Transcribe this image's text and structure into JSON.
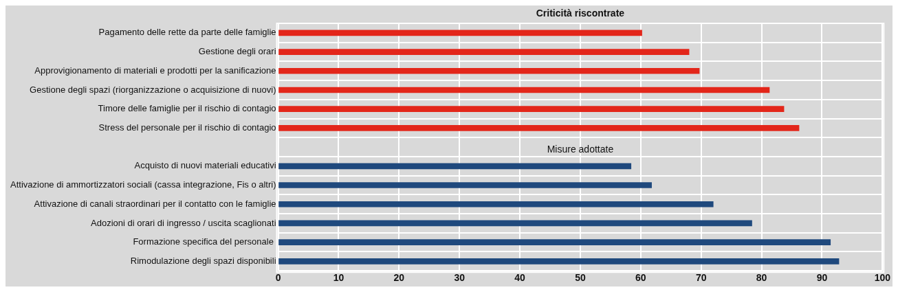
{
  "chart_data": {
    "type": "bar",
    "orientation": "horizontal",
    "title": "Criticità riscontrate",
    "categories": [
      "Pagamento delle rette da parte delle famiglie",
      "Gestione degli orari",
      "Approvigionamento di materiali e prodotti per la sanificazione",
      "Gestione degli spazi (riorganizzazione o acquisizione di nuovi)",
      "Timore delle famiglie per il rischio di contagio",
      "Stress del personale per il rischio di contagio",
      null,
      "Acquisto di nuovi materiali educativi",
      "Attivazione di ammortizzatori sociali (cassa integrazione, Fis o altri)",
      "Attivazione di canali straordinari per il contatto con le famiglie",
      "Adozioni di orari di ingresso / uscita scaglionati",
      "Formazione specifica del personale ",
      "Rimodulazione degli spazi disponibili"
    ],
    "values": [
      60.2,
      68,
      69.7,
      81.3,
      83.7,
      86.2,
      null,
      58.4,
      61.8,
      72,
      78.4,
      91.4,
      92.8
    ],
    "colors": [
      "#e3261a",
      "#e3261a",
      "#e3261a",
      "#e3261a",
      "#e3261a",
      "#e3261a",
      "#e3261a",
      "#1f497d",
      "#1f497d",
      "#1f497d",
      "#1f497d",
      "#1f497d",
      "#1f497d"
    ],
    "annotations": [
      "Misure adottate"
    ],
    "xlim": [
      0,
      100
    ],
    "xticks": [
      0,
      10,
      20,
      30,
      40,
      50,
      60,
      70,
      80,
      90,
      100
    ],
    "grid": true,
    "legend": false
  }
}
